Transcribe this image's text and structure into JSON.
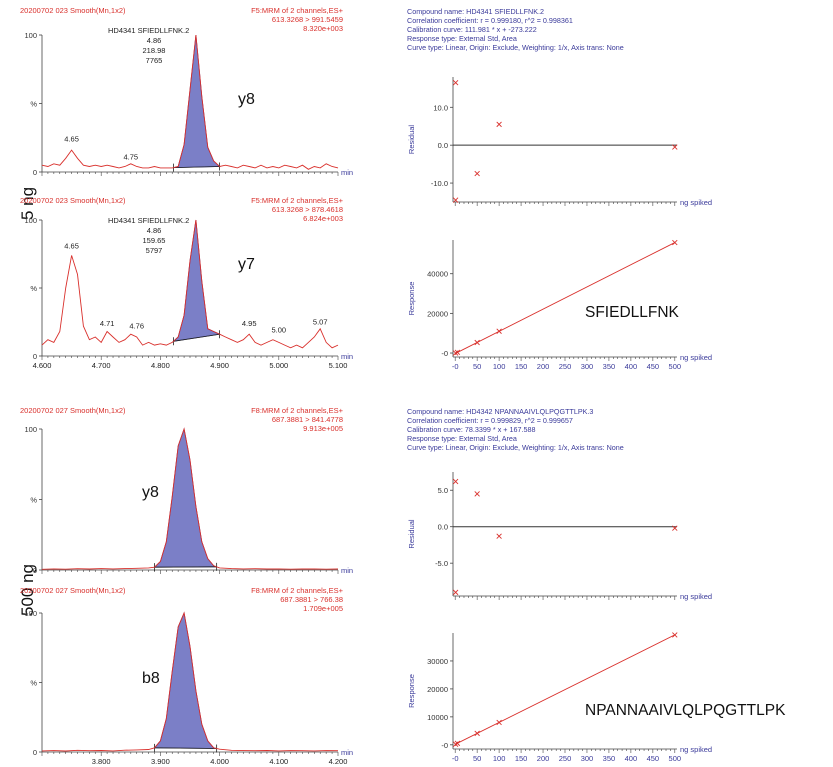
{
  "group_labels": [
    "5 ng",
    "500 ng"
  ],
  "colors": {
    "red": "#d9302c",
    "blue": "#3a3a9a",
    "peak": "#7b7fc7",
    "axis": "#444444"
  },
  "chart_data": [
    {
      "type": "line",
      "id": "chrom-5ng-y8",
      "header_left": "20200702 023 Smooth(Mn,1x2)",
      "header_right": [
        "F5:MRM of 2 channels,ES+",
        "613.3268 > 991.5459",
        "8.320e+003"
      ],
      "compound": "HD4341 SFIEDLLFNK.2",
      "peak_info": [
        "4.86",
        "218.98",
        "7765"
      ],
      "ion_label": "y8",
      "xlim": [
        4.6,
        5.1
      ],
      "ylim": [
        0,
        100
      ],
      "y_ticks": [
        "100",
        "%",
        "0"
      ],
      "x_unit": "min",
      "peak_x": [
        4.822,
        4.9
      ],
      "annotations": [
        {
          "x": 4.65,
          "y": 20,
          "text": "4.65"
        },
        {
          "x": 4.75,
          "y": 7,
          "text": "4.75"
        }
      ],
      "series": [
        {
          "x": [
            4.6,
            4.61,
            4.62,
            4.63,
            4.64,
            4.65,
            4.66,
            4.67,
            4.68,
            4.69,
            4.7,
            4.71,
            4.72,
            4.73,
            4.74,
            4.75,
            4.76,
            4.77,
            4.78,
            4.79,
            4.8,
            4.81,
            4.82,
            4.83,
            4.84,
            4.85,
            4.86,
            4.87,
            4.88,
            4.89,
            4.9,
            4.91,
            4.92,
            4.93,
            4.94,
            4.95,
            4.96,
            4.97,
            4.98,
            4.99,
            5.0,
            5.01,
            5.02,
            5.03,
            5.04,
            5.05,
            5.06,
            5.07,
            5.08,
            5.09,
            5.1
          ],
          "y": [
            5,
            4,
            6,
            5,
            10,
            16,
            10,
            5,
            4,
            5,
            4,
            5,
            4,
            3,
            4,
            6,
            4,
            3,
            3,
            4,
            3,
            3,
            3,
            4,
            20,
            60,
            100,
            55,
            18,
            8,
            4,
            5,
            4,
            3,
            5,
            4,
            3,
            5,
            3,
            4,
            3,
            5,
            4,
            3,
            5,
            2,
            4,
            3,
            6,
            4,
            3
          ]
        }
      ]
    },
    {
      "type": "line",
      "id": "chrom-5ng-y7",
      "header_left": "20200702 023 Smooth(Mn,1x2)",
      "header_right": [
        "F5:MRM of 2 channels,ES+",
        "613.3268 > 878.4618",
        "6.824e+003"
      ],
      "compound": "HD4341 SFIEDLLFNK.2",
      "peak_info": [
        "4.86",
        "159.65",
        "5797"
      ],
      "ion_label": "y7",
      "xlim": [
        4.6,
        5.1
      ],
      "ylim": [
        0,
        100
      ],
      "y_ticks": [
        "100",
        "%",
        "0"
      ],
      "x_unit": "min",
      "x_tick_labels": [
        "4.600",
        "4.700",
        "4.800",
        "4.900",
        "5.000",
        "5.100"
      ],
      "peak_x": [
        4.822,
        4.9
      ],
      "annotations": [
        {
          "x": 4.65,
          "y": 77,
          "text": "4.65"
        },
        {
          "x": 4.71,
          "y": 20,
          "text": "4.71"
        },
        {
          "x": 4.76,
          "y": 18,
          "text": "4.76"
        },
        {
          "x": 4.95,
          "y": 20,
          "text": "4.95"
        },
        {
          "x": 5.0,
          "y": 15,
          "text": "5.00"
        },
        {
          "x": 5.07,
          "y": 21,
          "text": "5.07"
        }
      ],
      "series": [
        {
          "x": [
            4.6,
            4.61,
            4.62,
            4.63,
            4.64,
            4.65,
            4.66,
            4.67,
            4.68,
            4.69,
            4.7,
            4.71,
            4.72,
            4.73,
            4.74,
            4.75,
            4.76,
            4.77,
            4.78,
            4.79,
            4.8,
            4.81,
            4.82,
            4.83,
            4.84,
            4.85,
            4.86,
            4.87,
            4.88,
            4.89,
            4.9,
            4.91,
            4.92,
            4.93,
            4.94,
            4.95,
            4.96,
            4.97,
            4.98,
            4.99,
            5.0,
            5.01,
            5.02,
            5.03,
            5.04,
            5.05,
            5.06,
            5.07,
            5.08,
            5.09,
            5.1
          ],
          "y": [
            8,
            12,
            10,
            18,
            50,
            74,
            60,
            22,
            12,
            14,
            10,
            18,
            14,
            10,
            12,
            16,
            14,
            8,
            10,
            8,
            9,
            8,
            10,
            14,
            30,
            70,
            100,
            55,
            20,
            18,
            16,
            14,
            12,
            10,
            12,
            16,
            10,
            8,
            10,
            12,
            10,
            8,
            6,
            8,
            6,
            10,
            14,
            20,
            10,
            6,
            8
          ]
        }
      ]
    },
    {
      "type": "line",
      "id": "chrom-500ng-y8",
      "header_left": "20200702 027 Smooth(Mn,1x2)",
      "header_right": [
        "F8:MRM of 2 channels,ES+",
        "687.3881 > 841.4778",
        "9.913e+005"
      ],
      "compound": "",
      "peak_info": [],
      "ion_label": "y8",
      "xlim": [
        3.7,
        4.2
      ],
      "ylim": [
        0,
        100
      ],
      "y_ticks": [
        "100",
        "%",
        "0"
      ],
      "x_unit": "min",
      "peak_x": [
        3.89,
        3.995
      ],
      "annotations": [],
      "series": [
        {
          "x": [
            3.7,
            3.72,
            3.74,
            3.76,
            3.78,
            3.8,
            3.82,
            3.84,
            3.86,
            3.88,
            3.89,
            3.9,
            3.91,
            3.92,
            3.93,
            3.94,
            3.95,
            3.96,
            3.97,
            3.98,
            3.99,
            4.0,
            4.02,
            4.04,
            4.06,
            4.08,
            4.1,
            4.12,
            4.14,
            4.16,
            4.18,
            4.2
          ],
          "y": [
            0.5,
            0.8,
            0.6,
            0.9,
            0.7,
            1.0,
            0.8,
            1.0,
            1.2,
            1.5,
            2,
            6,
            20,
            52,
            88,
            100,
            78,
            45,
            20,
            8,
            3,
            1.5,
            1,
            0.8,
            0.9,
            0.7,
            0.8,
            0.6,
            0.7,
            0.8,
            0.6,
            0.7
          ]
        }
      ]
    },
    {
      "type": "line",
      "id": "chrom-500ng-b8",
      "header_left": "20200702 027 Smooth(Mn,1x2)",
      "header_right": [
        "F8:MRM of 2 channels,ES+",
        "687.3881 > 766.38",
        "1.709e+005"
      ],
      "compound": "",
      "peak_info": [],
      "ion_label": "b8",
      "xlim": [
        3.7,
        4.2
      ],
      "ylim": [
        0,
        100
      ],
      "y_ticks": [
        "100",
        "%",
        "0"
      ],
      "x_unit": "min",
      "x_tick_labels": [
        "3.800",
        "3.900",
        "4.000",
        "4.100",
        "4.200"
      ],
      "peak_x": [
        3.89,
        3.995
      ],
      "annotations": [],
      "series": [
        {
          "x": [
            3.7,
            3.72,
            3.74,
            3.76,
            3.78,
            3.8,
            3.82,
            3.84,
            3.86,
            3.88,
            3.89,
            3.9,
            3.91,
            3.92,
            3.93,
            3.94,
            3.95,
            3.96,
            3.97,
            3.98,
            3.99,
            4.0,
            4.02,
            4.04,
            4.06,
            4.08,
            4.1,
            4.12,
            4.14,
            4.16,
            4.18,
            4.2
          ],
          "y": [
            0.8,
            1.0,
            0.7,
            1.2,
            0.9,
            1.1,
            0.8,
            1.3,
            1.5,
            1.8,
            3,
            8,
            24,
            58,
            90,
            100,
            76,
            44,
            20,
            8,
            3,
            2,
            1.2,
            1.0,
            0.9,
            1.1,
            0.8,
            1.0,
            0.9,
            0.8,
            1.0,
            0.9
          ]
        }
      ]
    },
    {
      "type": "scatter",
      "id": "residual-sfiedllfnk",
      "info_lines": [
        "Compound name: HD4341 SFIEDLLFNK.2",
        "Correlation coefficient: r = 0.999180, r^2 = 0.998361",
        "Calibration curve: 111.981 * x + -273.222",
        "Response type: External Std, Area",
        "Curve type: Linear, Origin: Exclude, Weighting: 1/x, Axis trans: None"
      ],
      "ylabel": "Residual",
      "xlabel": "ng spiked",
      "xlim": [
        -5,
        505
      ],
      "ylim": [
        -15,
        18
      ],
      "y_tick_values": [
        10.0,
        0.0,
        -10.0
      ],
      "y_tick_labels": [
        "10.0",
        "0.0",
        "-10.0"
      ],
      "points": [
        {
          "x": 1,
          "y": 16.5
        },
        {
          "x": 1,
          "y": -14.5
        },
        {
          "x": 50,
          "y": -7.5
        },
        {
          "x": 100,
          "y": 5.5
        },
        {
          "x": 500,
          "y": -0.5
        }
      ]
    },
    {
      "type": "scatter",
      "id": "calibration-sfiedllfnk",
      "ylabel": "Response",
      "xlabel": "ng spiked",
      "peptide": "SFIEDLLFNK",
      "xlim": [
        -5,
        505
      ],
      "ylim": [
        -2000,
        57000
      ],
      "y_tick_values": [
        40000,
        20000,
        0
      ],
      "y_tick_labels": [
        "40000",
        "20000",
        "-0"
      ],
      "x_tick_values": [
        0,
        50,
        100,
        150,
        200,
        250,
        300,
        350,
        400,
        450,
        500
      ],
      "x_tick_labels": [
        "-0",
        "50",
        "100",
        "150",
        "200",
        "250",
        "300",
        "350",
        "400",
        "450",
        "500"
      ],
      "fit": {
        "slope": 111.981,
        "intercept": -273.222
      },
      "points": [
        {
          "x": 1,
          "y": 0
        },
        {
          "x": 5,
          "y": 350
        },
        {
          "x": 50,
          "y": 5300
        },
        {
          "x": 100,
          "y": 11000
        },
        {
          "x": 500,
          "y": 55700
        }
      ]
    },
    {
      "type": "scatter",
      "id": "residual-npannaaivlqlpqgttlpk",
      "info_lines": [
        "Compound name: HD4342 NPANNAAIVLQLPQGTTLPK.3",
        "Correlation coefficient: r = 0.999829, r^2 = 0.999657",
        "Calibration curve: 78.3399 * x + 167.588",
        "Response type: External Std, Area",
        "Curve type: Linear, Origin: Exclude, Weighting: 1/x, Axis trans: None"
      ],
      "ylabel": "Residual",
      "xlabel": "ng spiked",
      "xlim": [
        -5,
        505
      ],
      "ylim": [
        -9.5,
        7.5
      ],
      "y_tick_values": [
        5.0,
        0.0,
        -5.0
      ],
      "y_tick_labels": [
        "5.0",
        "0.0",
        "-5.0"
      ],
      "points": [
        {
          "x": 1,
          "y": 6.2
        },
        {
          "x": 1,
          "y": -9.0
        },
        {
          "x": 50,
          "y": 4.5
        },
        {
          "x": 100,
          "y": -1.3
        },
        {
          "x": 500,
          "y": -0.2
        }
      ]
    },
    {
      "type": "scatter",
      "id": "calibration-npannaaivlqlpqgttlpk",
      "ylabel": "Response",
      "xlabel": "ng spiked",
      "peptide": "NPANNAAIVLQLPQGTTLPK",
      "xlim": [
        -5,
        505
      ],
      "ylim": [
        -1500,
        40000
      ],
      "y_tick_values": [
        30000,
        20000,
        10000,
        0
      ],
      "y_tick_labels": [
        "30000",
        "20000",
        "10000",
        "-0"
      ],
      "x_tick_values": [
        0,
        50,
        100,
        150,
        200,
        250,
        300,
        350,
        400,
        450,
        500
      ],
      "x_tick_labels": [
        "-0",
        "50",
        "100",
        "150",
        "200",
        "250",
        "300",
        "350",
        "400",
        "450",
        "500"
      ],
      "fit": {
        "slope": 78.3399,
        "intercept": 167.588
      },
      "points": [
        {
          "x": 1,
          "y": 200
        },
        {
          "x": 5,
          "y": 520
        },
        {
          "x": 50,
          "y": 4100
        },
        {
          "x": 100,
          "y": 8000
        },
        {
          "x": 500,
          "y": 39300
        }
      ]
    }
  ]
}
